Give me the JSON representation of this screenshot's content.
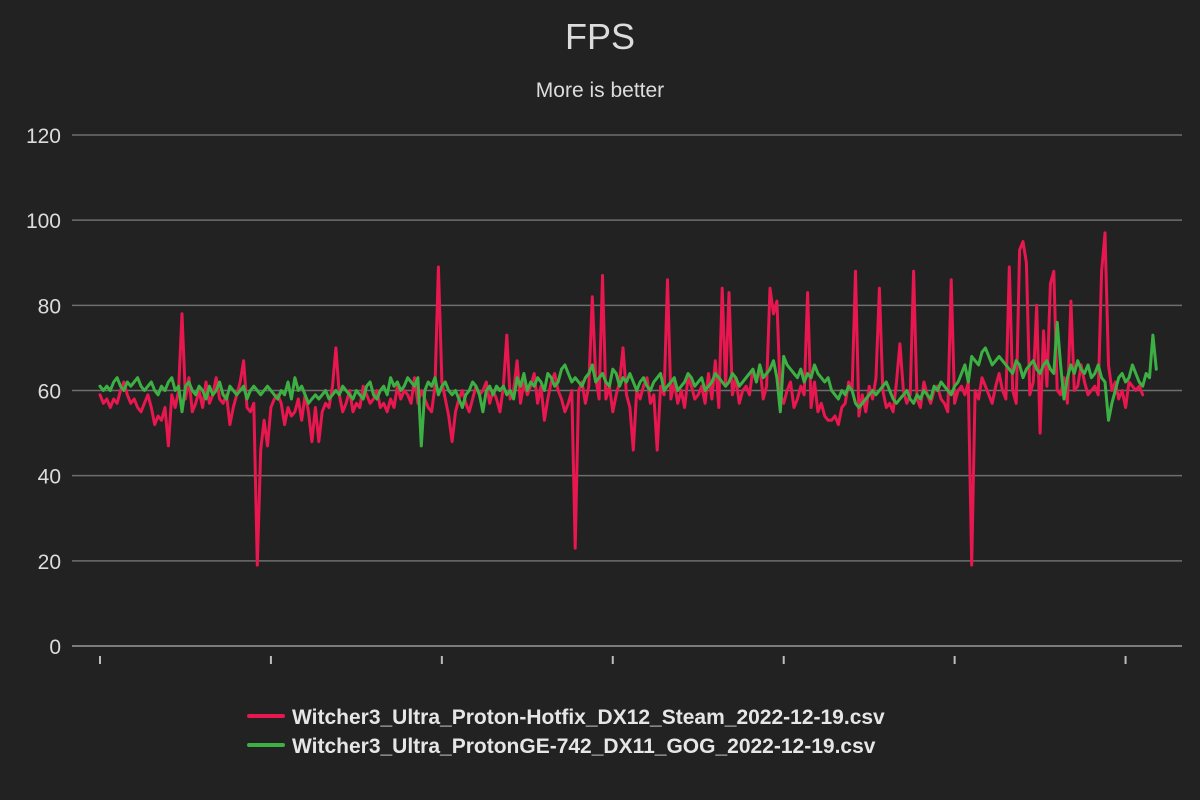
{
  "chart_data": {
    "type": "line",
    "title": "FPS",
    "subtitle": "More is better",
    "xlabel": "",
    "ylabel": "",
    "ylim": [
      0,
      120
    ],
    "yticks": [
      0,
      20,
      40,
      60,
      80,
      100,
      120
    ],
    "xlim": [
      0,
      313
    ],
    "xtick_positions": [
      0,
      50,
      100,
      150,
      200,
      250,
      300
    ],
    "grid": true,
    "legend_position": "bottom",
    "series": [
      {
        "name": "Witcher3_Ultra_Proton-Hotfix_DX12_Steam_2022-12-19.csv",
        "color": "#e8174f",
        "y": [
          59,
          57,
          58,
          56,
          58,
          57,
          60,
          62,
          59,
          57,
          58,
          56,
          55,
          57,
          59,
          56,
          52,
          54,
          53,
          56,
          47,
          59,
          56,
          60,
          78,
          58,
          63,
          55,
          57,
          60,
          56,
          62,
          57,
          59,
          63,
          58,
          57,
          59,
          52,
          56,
          59,
          62,
          67,
          56,
          55,
          57,
          19,
          46,
          53,
          47,
          56,
          58,
          59,
          57,
          52,
          56,
          54,
          55,
          58,
          53,
          59,
          55,
          48,
          56,
          48,
          55,
          57,
          56,
          61,
          70,
          59,
          55,
          57,
          60,
          55,
          57,
          56,
          61,
          59,
          57,
          58,
          60,
          56,
          57,
          55,
          58,
          56,
          61,
          58,
          60,
          59,
          57,
          63,
          57,
          60,
          58,
          56,
          55,
          61,
          89,
          62,
          58,
          54,
          48,
          55,
          58,
          60,
          57,
          55,
          58,
          61,
          59,
          60,
          62,
          57,
          60,
          58,
          55,
          61,
          73,
          58,
          60,
          67,
          57,
          62,
          59,
          61,
          64,
          57,
          61,
          53,
          58,
          62,
          64,
          60,
          58,
          55,
          57,
          60,
          23,
          60,
          62,
          57,
          61,
          82,
          63,
          58,
          87,
          58,
          61,
          55,
          59,
          62,
          70,
          59,
          56,
          46,
          60,
          58,
          61,
          63,
          57,
          59,
          46,
          61,
          59,
          86,
          58,
          62,
          57,
          60,
          56,
          63,
          61,
          58,
          59,
          61,
          57,
          64,
          58,
          67,
          56,
          84,
          61,
          83,
          59,
          63,
          57,
          60,
          61,
          59,
          65,
          62,
          66,
          58,
          61,
          84,
          78,
          81,
          59,
          57,
          60,
          62,
          56,
          58,
          61,
          59,
          83,
          56,
          62,
          55,
          57,
          54,
          53,
          53,
          54,
          52,
          56,
          57,
          62,
          60,
          88,
          54,
          59,
          55,
          61,
          58,
          63,
          84,
          60,
          56,
          57,
          55,
          62,
          71,
          60,
          57,
          59,
          88,
          58,
          56,
          62,
          59,
          57,
          60,
          61,
          58,
          57,
          55,
          86,
          57,
          60,
          61,
          59,
          62,
          19,
          60,
          58,
          63,
          61,
          59,
          57,
          61,
          64,
          60,
          58,
          89,
          60,
          57,
          93,
          95,
          90,
          59,
          62,
          80,
          50,
          74,
          61,
          85,
          88,
          60,
          59,
          63,
          57,
          81,
          60,
          61,
          66,
          62,
          59,
          60,
          61,
          59,
          88,
          97,
          66,
          60,
          62,
          58,
          60,
          56,
          62,
          61,
          60,
          61,
          59
        ]
      },
      {
        "name": "Witcher3_Ultra_ProtonGE-742_DX11_GOG_2022-12-19.csv",
        "color": "#3cb043",
        "y": [
          61,
          60,
          61,
          60,
          62,
          63,
          61,
          60,
          62,
          61,
          62,
          63,
          61,
          60,
          61,
          62,
          60,
          59,
          61,
          60,
          62,
          63,
          60,
          61,
          55,
          61,
          62,
          60,
          59,
          61,
          60,
          58,
          61,
          59,
          60,
          62,
          59,
          58,
          61,
          60,
          59,
          60,
          61,
          58,
          60,
          61,
          60,
          59,
          60,
          61,
          60,
          59,
          58,
          60,
          59,
          62,
          58,
          63,
          60,
          61,
          59,
          57,
          58,
          59,
          58,
          59,
          60,
          58,
          59,
          60,
          59,
          61,
          60,
          59,
          58,
          60,
          59,
          58,
          61,
          62,
          59,
          58,
          60,
          61,
          59,
          63,
          61,
          62,
          60,
          61,
          63,
          62,
          61,
          63,
          47,
          60,
          62,
          61,
          63,
          59,
          61,
          62,
          60,
          59,
          60,
          58,
          56,
          59,
          60,
          62,
          61,
          59,
          55,
          60,
          61,
          59,
          61,
          60,
          61,
          59,
          60,
          58,
          63,
          61,
          64,
          60,
          62,
          61,
          63,
          62,
          60,
          64,
          63,
          61,
          62,
          65,
          66,
          64,
          62,
          63,
          62,
          61,
          63,
          64,
          66,
          62,
          63,
          64,
          62,
          61,
          65,
          64,
          61,
          63,
          62,
          64,
          62,
          60,
          62,
          63,
          61,
          60,
          62,
          63,
          64,
          60,
          61,
          62,
          63,
          60,
          61,
          62,
          64,
          63,
          61,
          62,
          63,
          60,
          61,
          62,
          64,
          63,
          62,
          61,
          62,
          64,
          63,
          61,
          62,
          63,
          64,
          65,
          62,
          66,
          63,
          64,
          65,
          67,
          63,
          55,
          68,
          66,
          65,
          64,
          63,
          65,
          62,
          64,
          63,
          66,
          64,
          63,
          62,
          63,
          60,
          59,
          58,
          60,
          59,
          61,
          60,
          57,
          56,
          57,
          58,
          59,
          60,
          59,
          60,
          61,
          62,
          60,
          58,
          57,
          58,
          59,
          60,
          58,
          57,
          59,
          58,
          60,
          59,
          58,
          61,
          60,
          62,
          61,
          60,
          59,
          61,
          62,
          64,
          66,
          62,
          68,
          67,
          66,
          69,
          70,
          68,
          66,
          67,
          68,
          67,
          66,
          65,
          64,
          67,
          66,
          63,
          65,
          66,
          67,
          65,
          64,
          66,
          67,
          65,
          64,
          76,
          66,
          58,
          63,
          66,
          64,
          67,
          65,
          64,
          66,
          63,
          64,
          66,
          63,
          62,
          53,
          57,
          60,
          63,
          64,
          62,
          63,
          66,
          64,
          62,
          61,
          64,
          63,
          73,
          65
        ]
      }
    ]
  }
}
